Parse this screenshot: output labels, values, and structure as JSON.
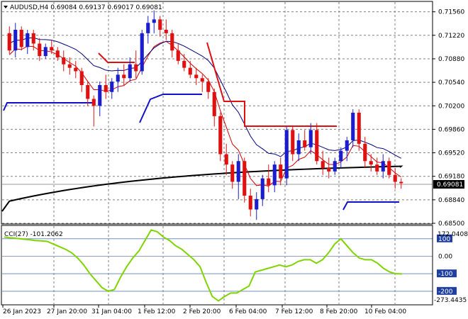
{
  "header": {
    "symbol": "AUDUSD,H4",
    "ohlc": "0.69084 0.69137 0.69017 0.69081"
  },
  "current_price": "0.69081",
  "price_axis": [
    "0.71560",
    "0.71220",
    "0.70880",
    "0.70540",
    "0.70200",
    "0.69860",
    "0.69520",
    "0.69180",
    "0.68840",
    "0.68500"
  ],
  "cci_panel": {
    "label": "CCI(27) -101.2062",
    "axis_top": "172.0408",
    "axis_bottom": "-273.4435",
    "levels": [
      "100",
      "0.00",
      "-100",
      "-200"
    ]
  },
  "time_axis": [
    "26 Jan 2023",
    "27 Jan 20:00",
    "31 Jan 04:00",
    "1 Feb 12:00",
    "2 Feb 20:00",
    "6 Feb 04:00",
    "7 Feb 12:00",
    "8 Feb 20:00",
    "10 Feb 04:00"
  ],
  "colors": {
    "bull": "#1c1ccf",
    "bear": "#e01010",
    "sma200": "#000000",
    "ema_fast": "#d40000",
    "ema_slow": "#000080",
    "stop_line_red": "#e01010",
    "stop_line_blue": "#1010c8",
    "cci": "#7fd400",
    "grid": "#808080"
  },
  "chart_data": {
    "type": "candlestick",
    "instrument": "AUDUSD",
    "timeframe": "H4",
    "x": [
      "26 Jan 2023",
      "27 Jan 20:00",
      "31 Jan 04:00",
      "1 Feb 12:00",
      "2 Feb 20:00",
      "6 Feb 04:00",
      "7 Feb 12:00",
      "8 Feb 20:00",
      "10 Feb 04:00"
    ],
    "candles": [
      [
        0.7125,
        0.7135,
        0.7095,
        0.71
      ],
      [
        0.71,
        0.714,
        0.709,
        0.713
      ],
      [
        0.713,
        0.7135,
        0.71,
        0.7105
      ],
      [
        0.7105,
        0.713,
        0.7095,
        0.7125
      ],
      [
        0.7125,
        0.713,
        0.71,
        0.711
      ],
      [
        0.711,
        0.7118,
        0.7085,
        0.7092
      ],
      [
        0.7092,
        0.711,
        0.7088,
        0.7105
      ],
      [
        0.7105,
        0.7115,
        0.7095,
        0.71
      ],
      [
        0.71,
        0.7105,
        0.7085,
        0.709
      ],
      [
        0.709,
        0.71,
        0.707,
        0.708
      ],
      [
        0.708,
        0.709,
        0.7065,
        0.7075
      ],
      [
        0.7075,
        0.7085,
        0.706,
        0.707
      ],
      [
        0.707,
        0.7075,
        0.704,
        0.705
      ],
      [
        0.705,
        0.7055,
        0.702,
        0.703
      ],
      [
        0.703,
        0.7035,
        0.699,
        0.702
      ],
      [
        0.702,
        0.7055,
        0.7005,
        0.705
      ],
      [
        0.705,
        0.7065,
        0.703,
        0.704
      ],
      [
        0.704,
        0.706,
        0.703,
        0.7055
      ],
      [
        0.7055,
        0.7075,
        0.704,
        0.7065
      ],
      [
        0.7065,
        0.708,
        0.705,
        0.706
      ],
      [
        0.706,
        0.709,
        0.7055,
        0.708
      ],
      [
        0.708,
        0.71,
        0.706,
        0.707
      ],
      [
        0.707,
        0.713,
        0.7065,
        0.7125
      ],
      [
        0.7125,
        0.715,
        0.711,
        0.714
      ],
      [
        0.714,
        0.7158,
        0.7125,
        0.7145
      ],
      [
        0.7145,
        0.715,
        0.712,
        0.713
      ],
      [
        0.713,
        0.7145,
        0.7115,
        0.7125
      ],
      [
        0.7125,
        0.713,
        0.709,
        0.71
      ],
      [
        0.71,
        0.711,
        0.708,
        0.7085
      ],
      [
        0.7085,
        0.7095,
        0.707,
        0.7075
      ],
      [
        0.7075,
        0.7085,
        0.706,
        0.7065
      ],
      [
        0.7065,
        0.7075,
        0.705,
        0.706
      ],
      [
        0.706,
        0.7065,
        0.704,
        0.7055
      ],
      [
        0.7055,
        0.706,
        0.703,
        0.704
      ],
      [
        0.704,
        0.7045,
        0.699,
        0.7005
      ],
      [
        0.7005,
        0.701,
        0.694,
        0.695
      ],
      [
        0.695,
        0.6965,
        0.692,
        0.6935
      ],
      [
        0.6935,
        0.694,
        0.69,
        0.691
      ],
      [
        0.691,
        0.695,
        0.6885,
        0.694
      ],
      [
        0.694,
        0.6945,
        0.688,
        0.689
      ],
      [
        0.689,
        0.69,
        0.686,
        0.687
      ],
      [
        0.687,
        0.6895,
        0.6855,
        0.6885
      ],
      [
        0.6885,
        0.692,
        0.6875,
        0.6915
      ],
      [
        0.6915,
        0.6935,
        0.6895,
        0.6905
      ],
      [
        0.6905,
        0.694,
        0.6895,
        0.6935
      ],
      [
        0.6935,
        0.6945,
        0.6905,
        0.6915
      ],
      [
        0.6915,
        0.699,
        0.6905,
        0.6985
      ],
      [
        0.6985,
        0.699,
        0.694,
        0.695
      ],
      [
        0.695,
        0.698,
        0.694,
        0.697
      ],
      [
        0.697,
        0.6985,
        0.6955,
        0.696
      ],
      [
        0.696,
        0.6995,
        0.695,
        0.6985
      ],
      [
        0.6985,
        0.6995,
        0.6935,
        0.694
      ],
      [
        0.694,
        0.6955,
        0.692,
        0.693
      ],
      [
        0.693,
        0.6945,
        0.6915,
        0.6925
      ],
      [
        0.6925,
        0.6945,
        0.692,
        0.694
      ],
      [
        0.694,
        0.696,
        0.693,
        0.6955
      ],
      [
        0.6955,
        0.6975,
        0.694,
        0.697
      ],
      [
        0.697,
        0.7015,
        0.696,
        0.701
      ],
      [
        0.701,
        0.7015,
        0.6955,
        0.6965
      ],
      [
        0.6965,
        0.6975,
        0.693,
        0.694
      ],
      [
        0.694,
        0.695,
        0.6925,
        0.6935
      ],
      [
        0.6935,
        0.6945,
        0.692,
        0.6925
      ],
      [
        0.6925,
        0.695,
        0.6915,
        0.694
      ],
      [
        0.694,
        0.6945,
        0.6915,
        0.692
      ],
      [
        0.692,
        0.693,
        0.69,
        0.691
      ],
      [
        0.691,
        0.6915,
        0.69,
        0.6908
      ]
    ],
    "ylim": [
      0.685,
      0.717
    ],
    "cci_ylim": [
      -273.4435,
      172.0408
    ],
    "cci_period": 27,
    "cci_last": -101.2062
  },
  "grid": true
}
